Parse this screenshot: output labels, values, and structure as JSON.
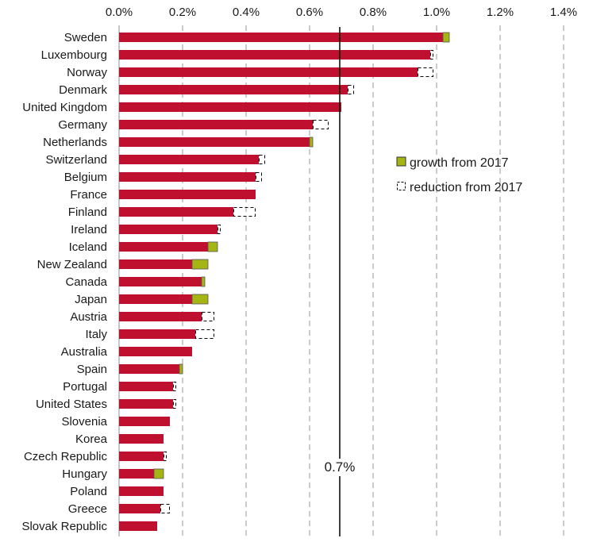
{
  "chart_data": {
    "type": "bar",
    "orientation": "horizontal",
    "title": "",
    "xlabel": "",
    "ylabel": "",
    "xlim": [
      0,
      1.4
    ],
    "x_ticks": [
      "0.0%",
      "0.2%",
      "0.4%",
      "0.6%",
      "0.8%",
      "1.0%",
      "1.2%",
      "1.4%"
    ],
    "x_axis_position": "top",
    "grid": "vertical dashed",
    "reference_line": {
      "value": 0.7,
      "label": "0.7%"
    },
    "legend": {
      "placement": "right",
      "items": [
        {
          "name": "growth from 2017",
          "style": "olive-fill"
        },
        {
          "name": "reduction from 2017",
          "style": "dashed-outline"
        }
      ]
    },
    "colors": {
      "base": "#c0102f",
      "growth": "#a5b514",
      "reduction_outline": "#000000",
      "grid": "#9a9a9a"
    },
    "categories": [
      "Sweden",
      "Luxembourg",
      "Norway",
      "Denmark",
      "United Kingdom",
      "Germany",
      "Netherlands",
      "Switzerland",
      "Belgium",
      "France",
      "Finland",
      "Ireland",
      "Iceland",
      "New Zealand",
      "Canada",
      "Japan",
      "Austria",
      "Italy",
      "Australia",
      "Spain",
      "Portugal",
      "United States",
      "Slovenia",
      "Korea",
      "Czech Republic",
      "Hungary",
      "Poland",
      "Greece",
      "Slovak Republic"
    ],
    "series": [
      {
        "name": "",
        "values": [
          1.02,
          0.98,
          0.94,
          0.72,
          0.7,
          0.61,
          0.6,
          0.44,
          0.43,
          0.43,
          0.36,
          0.31,
          0.28,
          0.23,
          0.26,
          0.23,
          0.26,
          0.24,
          0.23,
          0.19,
          0.17,
          0.17,
          0.16,
          0.14,
          0.14,
          0.11,
          0.14,
          0.13,
          0.12
        ]
      },
      {
        "name": "growth from 2017",
        "values": [
          0.02,
          0,
          0,
          0,
          0,
          0,
          0.01,
          0,
          0,
          0,
          0,
          0,
          0.03,
          0.05,
          0.01,
          0.05,
          0,
          0,
          0,
          0.01,
          0,
          0,
          0,
          0,
          0,
          0.03,
          0,
          0,
          0
        ]
      },
      {
        "name": "reduction from 2017",
        "values": [
          0,
          0.01,
          0.05,
          0.02,
          0,
          0.05,
          0,
          0.02,
          0.02,
          0,
          0.07,
          0.01,
          0,
          0,
          0,
          0,
          0.04,
          0.06,
          0,
          0,
          0.01,
          0.01,
          0,
          0,
          0.01,
          0,
          0,
          0.03,
          0
        ]
      }
    ]
  }
}
